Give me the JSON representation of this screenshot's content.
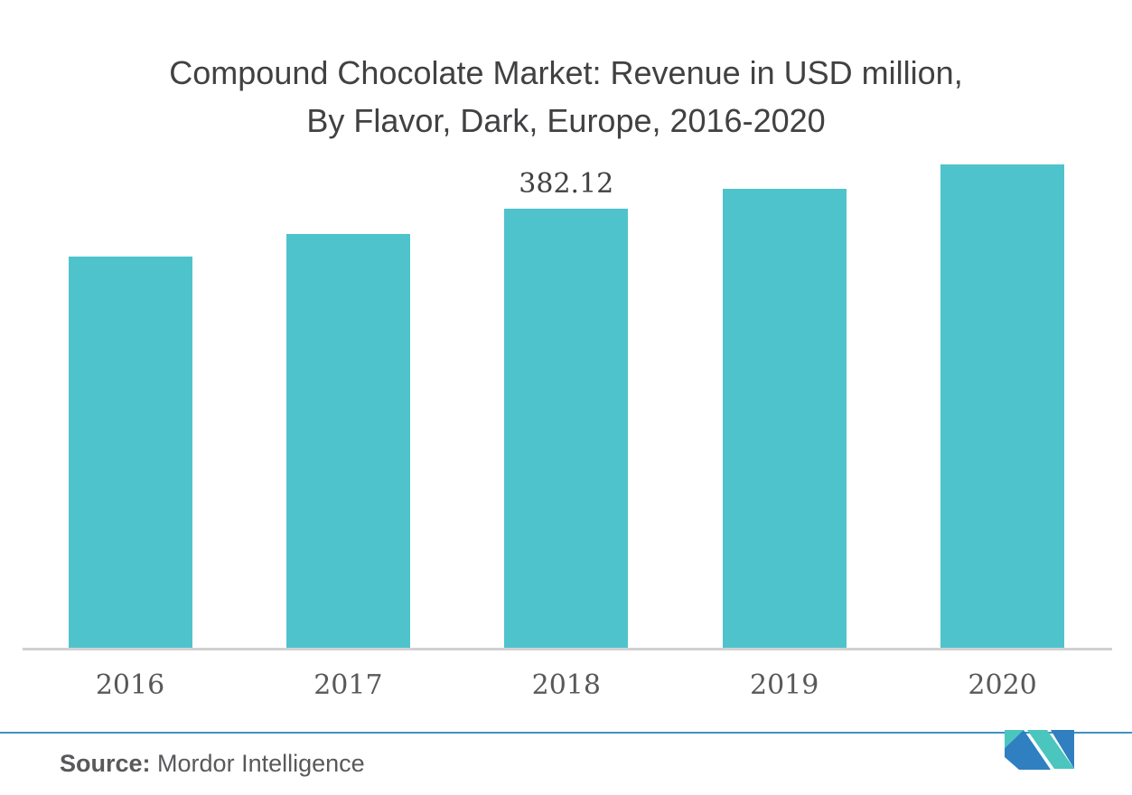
{
  "title": {
    "line1": "Compound Chocolate Market: Revenue in USD million,",
    "line2": "By Flavor, Dark, Europe, 2016-2020"
  },
  "chart_data": {
    "type": "bar",
    "title": "Compound Chocolate Market: Revenue in USD million, By Flavor, Dark, Europe, 2016-2020",
    "categories": [
      "2016",
      "2017",
      "2018",
      "2019",
      "2020"
    ],
    "values": [
      340.2,
      359.9,
      382.12,
      399.7,
      420.7
    ],
    "data_labels": [
      "",
      "",
      "382.12",
      "",
      ""
    ],
    "xlabel": "",
    "ylabel": "",
    "ylim": [
      0,
      450
    ],
    "grid": false,
    "legend": false,
    "bar_color": "#4FC3CC",
    "axis_line_color": "#D1D1D1",
    "label_color": "#414042",
    "tick_color": "#58595B"
  },
  "footer": {
    "source_label": "Source:",
    "source_value": "Mordor Intelligence",
    "divider_color": "#3E92C5"
  },
  "logo": {
    "name": "mordor-intelligence-logo",
    "teal": "#4AC6BE",
    "blue": "#2F7FC1"
  }
}
